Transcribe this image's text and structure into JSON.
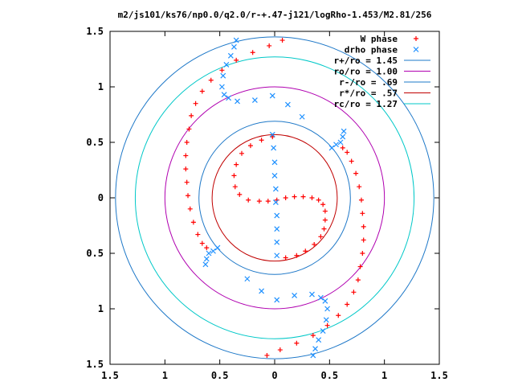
{
  "chart_data": {
    "type": "scatter",
    "title": "m2/js101/ks76/np0.0/q2.0/r-+.47-j121/logRho-1.453/M2.81/256",
    "xlabel": "",
    "ylabel": "",
    "xlim": [
      -1.5,
      1.5
    ],
    "ylim": [
      -1.5,
      1.5
    ],
    "x_ticks": [
      -1.5,
      -1,
      -0.5,
      0,
      0.5,
      1,
      1.5
    ],
    "y_ticks": [
      -1.5,
      -1,
      -0.5,
      0,
      0.5,
      1,
      1.5
    ],
    "x_tick_labels": [
      "1.5",
      "1",
      "0.5",
      "0",
      "0.5",
      "1",
      "1.5"
    ],
    "y_tick_labels": [
      "1.5",
      "1",
      "0.5",
      "0",
      "0.5",
      "1",
      "1.5"
    ],
    "grid": false,
    "legend_position": "top-right",
    "series": [
      {
        "name": "W phase",
        "marker": "plus",
        "color": "#ff0000",
        "points": [
          [
            0.07,
            1.42
          ],
          [
            -0.05,
            1.37
          ],
          [
            -0.2,
            1.31
          ],
          [
            -0.35,
            1.24
          ],
          [
            -0.48,
            1.15
          ],
          [
            -0.58,
            1.06
          ],
          [
            -0.66,
            0.96
          ],
          [
            -0.72,
            0.85
          ],
          [
            -0.76,
            0.74
          ],
          [
            -0.78,
            0.62
          ],
          [
            -0.8,
            0.5
          ],
          [
            -0.81,
            0.38
          ],
          [
            -0.81,
            0.26
          ],
          [
            -0.8,
            0.14
          ],
          [
            -0.79,
            0.02
          ],
          [
            -0.77,
            -0.1
          ],
          [
            -0.74,
            -0.22
          ],
          [
            -0.7,
            -0.33
          ],
          [
            -0.66,
            -0.41
          ],
          [
            -0.62,
            -0.45
          ],
          [
            -0.07,
            -1.42
          ],
          [
            0.05,
            -1.37
          ],
          [
            0.2,
            -1.31
          ],
          [
            0.35,
            -1.24
          ],
          [
            0.48,
            -1.15
          ],
          [
            0.58,
            -1.06
          ],
          [
            0.66,
            -0.96
          ],
          [
            0.72,
            -0.85
          ],
          [
            0.76,
            -0.74
          ],
          [
            0.78,
            -0.62
          ],
          [
            0.8,
            -0.5
          ],
          [
            0.81,
            -0.38
          ],
          [
            0.81,
            -0.26
          ],
          [
            0.8,
            -0.14
          ],
          [
            0.79,
            -0.02
          ],
          [
            0.77,
            0.1
          ],
          [
            0.74,
            0.22
          ],
          [
            0.7,
            0.33
          ],
          [
            0.66,
            0.41
          ],
          [
            0.62,
            0.45
          ],
          [
            -0.02,
            0.55
          ],
          [
            -0.12,
            0.52
          ],
          [
            -0.22,
            0.47
          ],
          [
            -0.3,
            0.4
          ],
          [
            -0.35,
            0.3
          ],
          [
            -0.37,
            0.2
          ],
          [
            -0.36,
            0.1
          ],
          [
            -0.32,
            0.03
          ],
          [
            -0.24,
            -0.02
          ],
          [
            -0.14,
            -0.03
          ],
          [
            -0.06,
            -0.03
          ],
          [
            0.02,
            -0.02
          ],
          [
            0.1,
            0.0
          ],
          [
            0.18,
            0.01
          ],
          [
            0.26,
            0.01
          ],
          [
            0.34,
            0.0
          ],
          [
            0.4,
            -0.02
          ],
          [
            0.44,
            -0.06
          ],
          [
            0.46,
            -0.12
          ],
          [
            0.46,
            -0.2
          ],
          [
            0.45,
            -0.28
          ],
          [
            0.42,
            -0.35
          ],
          [
            0.36,
            -0.42
          ],
          [
            0.28,
            -0.48
          ],
          [
            0.2,
            -0.52
          ],
          [
            0.1,
            -0.54
          ]
        ]
      },
      {
        "name": "drho phase",
        "marker": "cross",
        "color": "#1e90ff",
        "points": [
          [
            -0.35,
            1.42
          ],
          [
            -0.37,
            1.36
          ],
          [
            -0.4,
            1.28
          ],
          [
            -0.44,
            1.2
          ],
          [
            -0.47,
            1.1
          ],
          [
            -0.48,
            1.0
          ],
          [
            -0.46,
            0.93
          ],
          [
            -0.42,
            0.9
          ],
          [
            -0.34,
            0.87
          ],
          [
            0.35,
            -1.42
          ],
          [
            0.37,
            -1.36
          ],
          [
            0.4,
            -1.28
          ],
          [
            0.44,
            -1.2
          ],
          [
            0.47,
            -1.1
          ],
          [
            0.48,
            -1.0
          ],
          [
            0.46,
            -0.93
          ],
          [
            0.42,
            -0.9
          ],
          [
            0.34,
            -0.87
          ],
          [
            -0.02,
            0.57
          ],
          [
            -0.01,
            0.45
          ],
          [
            0.0,
            0.32
          ],
          [
            0.0,
            0.2
          ],
          [
            0.01,
            0.08
          ],
          [
            0.01,
            -0.04
          ],
          [
            0.02,
            -0.16
          ],
          [
            0.02,
            -0.28
          ],
          [
            0.02,
            -0.4
          ],
          [
            0.02,
            -0.52
          ],
          [
            0.52,
            0.45
          ],
          [
            0.56,
            0.48
          ],
          [
            0.6,
            0.5
          ],
          [
            0.62,
            0.55
          ],
          [
            0.63,
            0.6
          ],
          [
            -0.52,
            -0.45
          ],
          [
            -0.56,
            -0.48
          ],
          [
            -0.6,
            -0.5
          ],
          [
            -0.62,
            -0.55
          ],
          [
            -0.63,
            -0.6
          ],
          [
            -0.18,
            0.88
          ],
          [
            -0.02,
            0.92
          ],
          [
            0.12,
            0.84
          ],
          [
            0.25,
            0.73
          ],
          [
            0.18,
            -0.88
          ],
          [
            0.02,
            -0.92
          ],
          [
            -0.12,
            -0.84
          ],
          [
            -0.25,
            -0.73
          ]
        ]
      }
    ],
    "circles": [
      {
        "label": "r+/ro = 1.45",
        "radius": 1.45,
        "color": "#1e78c8"
      },
      {
        "label": "ro/ro = 1.00",
        "radius": 1.0,
        "color": "#b000b0"
      },
      {
        "label": "r-/ro = .69",
        "radius": 0.69,
        "color": "#1e78c8"
      },
      {
        "label": "r*/ro = .57",
        "radius": 0.57,
        "color": "#c00000"
      },
      {
        "label": "rc/ro = 1.27",
        "radius": 1.27,
        "color": "#00c8c8"
      }
    ]
  }
}
